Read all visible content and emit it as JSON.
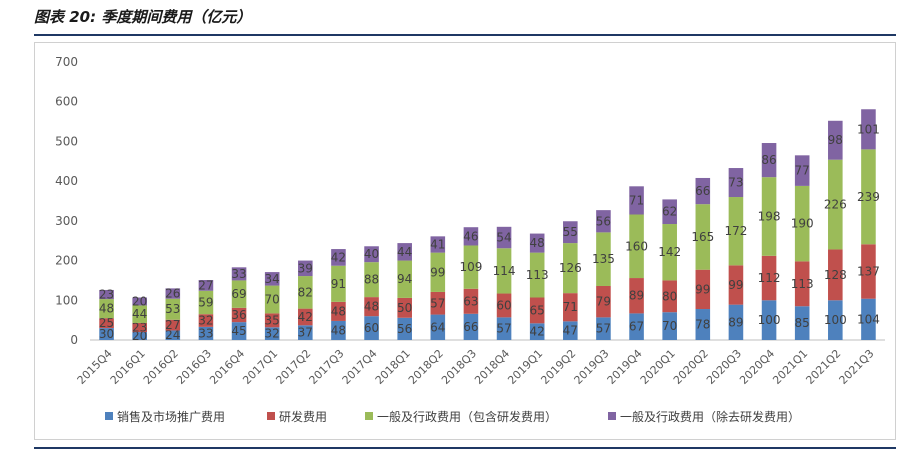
{
  "figure": {
    "title": "图表 20: 季度期间费用（亿元）"
  },
  "chart_data": {
    "type": "bar",
    "stacked": true,
    "title": "",
    "xlabel": "",
    "ylabel": "",
    "ylim": [
      0,
      700
    ],
    "yticks": [
      0,
      100,
      200,
      300,
      400,
      500,
      600,
      700
    ],
    "grid": false,
    "legend_position": "bottom",
    "categories": [
      "2015Q4",
      "2016Q1",
      "2016Q2",
      "2016Q3",
      "2016Q4",
      "2017Q1",
      "2017Q2",
      "2017Q3",
      "2017Q4",
      "2018Q1",
      "2018Q2",
      "2018Q3",
      "2018Q4",
      "2019Q1",
      "2019Q2",
      "2019Q3",
      "2019Q4",
      "2020Q1",
      "2020Q2",
      "2020Q3",
      "2020Q4",
      "2021Q1",
      "2021Q2",
      "2021Q3"
    ],
    "series": [
      {
        "name": "销售及市场推广费用",
        "color": "#4e81bd",
        "values": [
          30,
          20,
          24,
          33,
          45,
          32,
          37,
          48,
          60,
          56,
          64,
          66,
          57,
          42,
          47,
          57,
          67,
          70,
          78,
          89,
          100,
          85,
          100,
          104
        ]
      },
      {
        "name": "研发费用",
        "color": "#c0504d",
        "values": [
          25,
          23,
          27,
          32,
          36,
          35,
          42,
          48,
          48,
          50,
          57,
          63,
          60,
          65,
          71,
          79,
          89,
          80,
          99,
          99,
          112,
          113,
          128,
          137
        ]
      },
      {
        "name": "一般及行政费用（包含研发费用）",
        "color": "#9bbb59",
        "values": [
          48,
          44,
          53,
          59,
          69,
          70,
          82,
          91,
          88,
          94,
          99,
          109,
          114,
          113,
          126,
          135,
          160,
          142,
          165,
          172,
          198,
          190,
          226,
          239
        ]
      },
      {
        "name": "一般及行政费用（除去研发费用）",
        "color": "#8064a2",
        "values": [
          23,
          20,
          26,
          27,
          33,
          34,
          39,
          42,
          40,
          44,
          41,
          46,
          54,
          48,
          55,
          56,
          71,
          62,
          66,
          73,
          86,
          77,
          98,
          101
        ]
      }
    ]
  }
}
